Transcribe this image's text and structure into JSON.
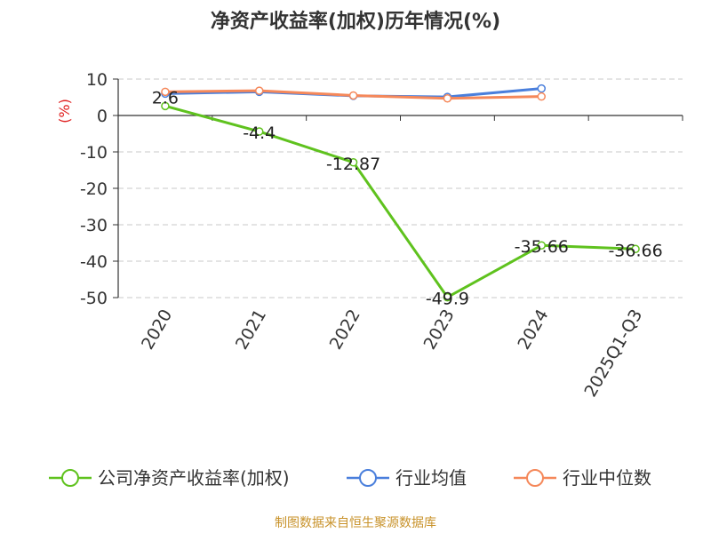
{
  "chart_data": {
    "type": "line",
    "title": "净资产收益率(加权)历年情况(%)",
    "ylabel": "(%)",
    "categories": [
      "2020",
      "2021",
      "2022",
      "2023",
      "2024",
      "2025Q1-Q3"
    ],
    "ylim": [
      -50,
      10
    ],
    "yticks": [
      10,
      0,
      -10,
      -20,
      -30,
      -40,
      -50
    ],
    "grid": true,
    "legend_position": "bottom",
    "series": [
      {
        "name": "公司净资产收益率(加权)",
        "color": "#5fc21e",
        "values": [
          2.6,
          -4.4,
          -12.87,
          -49.9,
          -35.66,
          -36.66
        ],
        "labels": [
          "2.6",
          "-4.4",
          "-12.87",
          "-49.9",
          "-35.66",
          "-36.66"
        ]
      },
      {
        "name": "行业均值",
        "color": "#4a7fdc",
        "values": [
          6.0,
          6.5,
          5.4,
          5.1,
          7.4,
          null
        ]
      },
      {
        "name": "行业中位数",
        "color": "#f5885a",
        "values": [
          6.5,
          6.8,
          5.5,
          4.7,
          5.2,
          null
        ]
      }
    ]
  },
  "footer": {
    "source": "制图数据来自恒生聚源数据库"
  },
  "colors": {
    "unit_label": "#e02020",
    "axis": "#333333",
    "grid": "#c8c8c8"
  }
}
